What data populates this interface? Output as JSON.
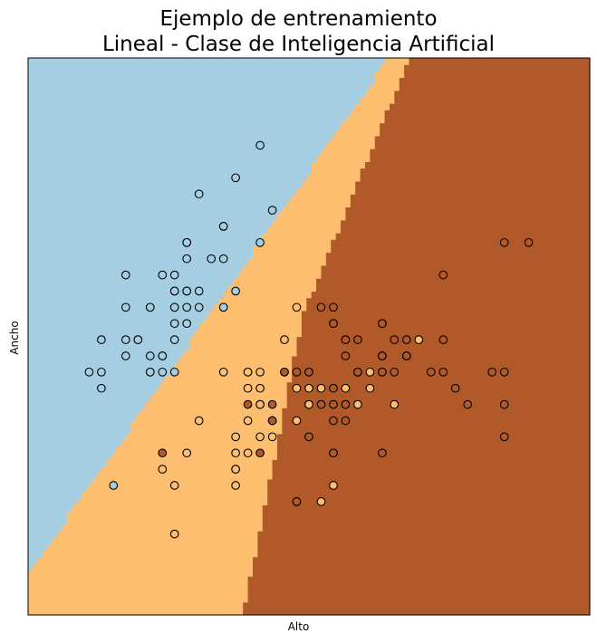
{
  "chart_data": {
    "type": "scatter",
    "title_line1": "Ejemplo de entrenamiento",
    "title_line2": "Lineal - Clase de Inteligencia Artificial",
    "xlabel": "Alto",
    "ylabel": "Ancho",
    "xlim": [
      3.8,
      8.4
    ],
    "ylim": [
      1.5,
      4.94
    ],
    "xticks_shown": false,
    "yticks_shown": false,
    "grid": false,
    "decision_regions": {
      "colors": [
        "#a6cee3",
        "#fdbf6f",
        "#b15928"
      ],
      "step": 0.04
    },
    "classes": [
      {
        "color": "#a6cee3",
        "points": [
          [
            5.1,
            3.5
          ],
          [
            4.9,
            3.0
          ],
          [
            4.7,
            3.2
          ],
          [
            4.6,
            3.1
          ],
          [
            5.0,
            3.6
          ],
          [
            5.4,
            3.9
          ],
          [
            4.6,
            3.4
          ],
          [
            5.0,
            3.4
          ],
          [
            4.4,
            2.9
          ],
          [
            4.9,
            3.1
          ],
          [
            5.4,
            3.7
          ],
          [
            4.8,
            3.4
          ],
          [
            4.8,
            3.0
          ],
          [
            4.3,
            3.0
          ],
          [
            5.8,
            4.0
          ],
          [
            5.7,
            4.4
          ],
          [
            5.4,
            3.9
          ],
          [
            5.1,
            3.5
          ],
          [
            5.7,
            3.8
          ],
          [
            5.1,
            3.8
          ],
          [
            5.4,
            3.4
          ],
          [
            5.1,
            3.7
          ],
          [
            4.6,
            3.6
          ],
          [
            5.1,
            3.3
          ],
          [
            4.8,
            3.4
          ],
          [
            5.0,
            3.0
          ],
          [
            5.0,
            3.4
          ],
          [
            5.2,
            3.5
          ],
          [
            5.2,
            3.4
          ],
          [
            4.7,
            3.2
          ],
          [
            4.8,
            3.1
          ],
          [
            5.4,
            3.4
          ],
          [
            5.2,
            4.1
          ],
          [
            5.5,
            4.2
          ],
          [
            4.9,
            3.1
          ],
          [
            5.0,
            3.2
          ],
          [
            5.5,
            3.5
          ],
          [
            4.9,
            3.6
          ],
          [
            4.4,
            3.0
          ],
          [
            5.1,
            3.4
          ],
          [
            5.0,
            3.5
          ],
          [
            4.5,
            2.3
          ],
          [
            4.4,
            3.2
          ],
          [
            5.0,
            3.5
          ],
          [
            5.1,
            3.8
          ],
          [
            4.8,
            3.0
          ],
          [
            5.1,
            3.8
          ],
          [
            4.6,
            3.2
          ],
          [
            5.3,
            3.7
          ],
          [
            5.0,
            3.3
          ]
        ]
      },
      {
        "color": "#fdbf6f",
        "points": [
          [
            7.0,
            3.2
          ],
          [
            6.4,
            3.2
          ],
          [
            6.9,
            3.1
          ],
          [
            5.5,
            2.3
          ],
          [
            6.5,
            2.8
          ],
          [
            5.7,
            2.8
          ],
          [
            6.3,
            3.3
          ],
          [
            4.9,
            2.4
          ],
          [
            6.6,
            2.9
          ],
          [
            5.2,
            2.7
          ],
          [
            5.0,
            2.0
          ],
          [
            5.9,
            3.0
          ],
          [
            6.0,
            2.2
          ],
          [
            6.1,
            2.9
          ],
          [
            5.6,
            2.9
          ],
          [
            6.7,
            3.1
          ],
          [
            5.6,
            3.0
          ],
          [
            5.8,
            2.7
          ],
          [
            6.2,
            2.2
          ],
          [
            5.6,
            2.5
          ],
          [
            5.9,
            3.2
          ],
          [
            6.1,
            2.8
          ],
          [
            6.3,
            2.5
          ],
          [
            6.1,
            2.8
          ],
          [
            6.4,
            2.9
          ],
          [
            6.6,
            3.0
          ],
          [
            6.8,
            2.8
          ],
          [
            6.7,
            3.0
          ],
          [
            6.0,
            2.9
          ],
          [
            5.7,
            2.6
          ],
          [
            5.5,
            2.4
          ],
          [
            5.5,
            2.4
          ],
          [
            5.8,
            2.7
          ],
          [
            6.0,
            2.7
          ],
          [
            5.4,
            3.0
          ],
          [
            6.0,
            3.4
          ],
          [
            6.7,
            3.1
          ],
          [
            6.3,
            2.3
          ],
          [
            5.6,
            3.0
          ],
          [
            5.5,
            2.5
          ],
          [
            5.5,
            2.6
          ],
          [
            6.1,
            3.0
          ],
          [
            5.8,
            2.6
          ],
          [
            5.0,
            2.3
          ],
          [
            5.6,
            2.7
          ],
          [
            5.7,
            3.0
          ],
          [
            5.7,
            2.9
          ],
          [
            6.2,
            2.9
          ],
          [
            5.1,
            2.5
          ],
          [
            5.7,
            2.8
          ]
        ]
      },
      {
        "color": "#b15928",
        "points": [
          [
            6.3,
            3.3
          ],
          [
            5.8,
            2.7
          ],
          [
            7.1,
            3.0
          ],
          [
            6.3,
            2.9
          ],
          [
            6.5,
            3.0
          ],
          [
            7.6,
            3.0
          ],
          [
            4.9,
            2.5
          ],
          [
            7.3,
            2.9
          ],
          [
            6.7,
            2.5
          ],
          [
            7.2,
            3.6
          ],
          [
            6.5,
            3.2
          ],
          [
            6.4,
            2.7
          ],
          [
            6.8,
            3.0
          ],
          [
            5.7,
            2.5
          ],
          [
            5.8,
            2.8
          ],
          [
            6.4,
            3.2
          ],
          [
            6.5,
            3.0
          ],
          [
            7.7,
            3.8
          ],
          [
            7.7,
            2.6
          ],
          [
            6.0,
            2.2
          ],
          [
            6.9,
            3.2
          ],
          [
            5.6,
            2.8
          ],
          [
            7.7,
            2.8
          ],
          [
            6.3,
            2.7
          ],
          [
            6.7,
            3.3
          ],
          [
            7.2,
            3.2
          ],
          [
            6.2,
            2.8
          ],
          [
            6.1,
            3.0
          ],
          [
            6.4,
            2.8
          ],
          [
            7.2,
            3.0
          ],
          [
            7.4,
            2.8
          ],
          [
            7.9,
            3.8
          ],
          [
            6.4,
            2.8
          ],
          [
            6.3,
            2.8
          ],
          [
            6.1,
            2.6
          ],
          [
            7.7,
            3.0
          ],
          [
            6.3,
            3.4
          ],
          [
            6.4,
            3.1
          ],
          [
            6.0,
            3.0
          ],
          [
            6.9,
            3.1
          ],
          [
            6.7,
            3.1
          ],
          [
            6.9,
            3.1
          ],
          [
            5.8,
            2.7
          ],
          [
            6.8,
            3.2
          ],
          [
            6.7,
            3.3
          ],
          [
            6.7,
            3.0
          ],
          [
            6.3,
            2.5
          ],
          [
            6.5,
            3.0
          ],
          [
            6.2,
            3.4
          ],
          [
            5.9,
            3.0
          ]
        ]
      }
    ]
  }
}
